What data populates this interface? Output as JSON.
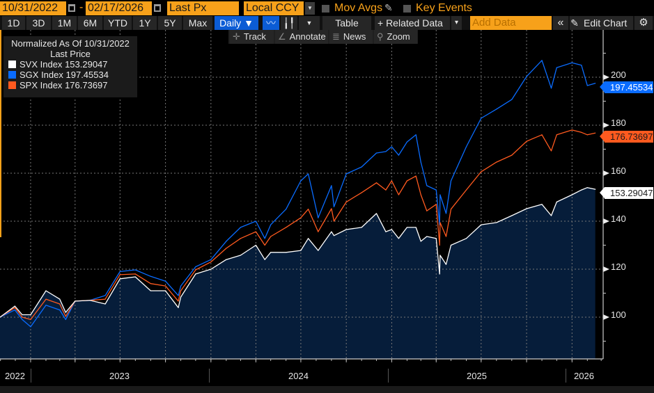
{
  "toolbar": {
    "start_date": "10/31/2022",
    "date_separator": "-",
    "end_date": "02/17/2026",
    "field": "Last Px",
    "currency": "Local CCY",
    "mov_avgs": "Mov Avgs",
    "key_events": "Key Events",
    "ranges": [
      "1D",
      "3D",
      "1M",
      "6M",
      "YTD",
      "1Y",
      "5Y",
      "Max"
    ],
    "frequency": "Daily ▼",
    "table": "Table",
    "related_data": "+ Related Data",
    "related_data_arrow": "▾",
    "add_data_placeholder": "Add Data",
    "collapse": "«",
    "edit_chart": "Edit Chart",
    "track": "Track",
    "annotate": "Annotate",
    "news": "News",
    "zoom": "Zoom"
  },
  "legend": {
    "title": "Normalized As Of 10/31/2022",
    "subtitle": "Last Price",
    "items": [
      {
        "name": "SVX Index",
        "value": "153.29047",
        "color": "#ffffff"
      },
      {
        "name": "SGX Index",
        "value": "197.45534",
        "color": "#0a6cff"
      },
      {
        "name": "SPX Index",
        "value": "176.73697",
        "color": "#ff5a1f"
      }
    ]
  },
  "chart_data": {
    "type": "line",
    "title": "Normalized As Of 10/31/2022",
    "xlabel": "",
    "ylabel": "",
    "ylim": [
      82.6,
      219.7
    ],
    "yticks": [
      100,
      120,
      140,
      160,
      180,
      200
    ],
    "xlim": [
      "2022-10-31",
      "2026-03-05"
    ],
    "x_tick_labels": [
      "2022",
      "2023",
      "2024",
      "2025",
      "2026"
    ],
    "grid": true,
    "legend_placement": "top-left",
    "area_fill_series": "SVX Index",
    "area_color": "#061d3a",
    "dates": [
      "2022-10-31",
      "2022-11-30",
      "2022-12-15",
      "2023-01-01",
      "2023-02-01",
      "2023-03-01",
      "2023-03-13",
      "2023-04-01",
      "2023-05-01",
      "2023-06-01",
      "2023-07-01",
      "2023-08-01",
      "2023-09-01",
      "2023-10-01",
      "2023-10-27",
      "2023-11-01",
      "2023-12-01",
      "2024-01-01",
      "2024-02-01",
      "2024-03-01",
      "2024-04-01",
      "2024-04-19",
      "2024-05-01",
      "2024-06-01",
      "2024-07-01",
      "2024-07-16",
      "2024-08-05",
      "2024-09-01",
      "2024-09-06",
      "2024-10-01",
      "2024-11-01",
      "2024-12-01",
      "2024-12-20",
      "2025-01-01",
      "2025-01-15",
      "2025-02-01",
      "2025-02-19",
      "2025-03-01",
      "2025-03-13",
      "2025-04-01",
      "2025-04-08",
      "2025-04-09",
      "2025-04-21",
      "2025-05-01",
      "2025-06-01",
      "2025-07-01",
      "2025-08-01",
      "2025-09-01",
      "2025-10-01",
      "2025-11-01",
      "2025-11-20",
      "2025-12-01",
      "2026-01-01",
      "2026-01-20",
      "2026-02-01",
      "2026-02-17"
    ],
    "series": [
      {
        "name": "SVX Index",
        "color": "#ffffff",
        "last": 153.29047,
        "values": [
          100,
          104.6,
          101,
          101,
          111,
          107.5,
          102,
          106.7,
          107,
          105.5,
          116,
          116.8,
          111,
          111,
          104,
          108.4,
          118,
          120,
          124,
          125.8,
          130,
          124,
          127,
          127,
          127.8,
          132.8,
          127.8,
          135.6,
          134,
          136.5,
          137.4,
          143.2,
          135.6,
          136.5,
          132.8,
          137.4,
          137.4,
          131.6,
          133.6,
          132.8,
          118,
          125.8,
          122,
          130,
          132.8,
          138.5,
          139.4,
          142.3,
          145.2,
          147,
          142.3,
          148,
          151,
          153,
          154,
          153.29047
        ]
      },
      {
        "name": "SGX Index",
        "color": "#0a6cff",
        "last": 197.45534,
        "values": [
          100,
          103,
          99,
          96,
          105,
          103,
          99,
          106.7,
          107,
          109,
          119,
          119.7,
          117,
          115,
          109,
          113,
          121,
          124,
          131.6,
          137.4,
          140,
          132.8,
          138.5,
          145,
          156.8,
          159.7,
          141.4,
          154.8,
          146,
          159.7,
          162.6,
          168.4,
          169,
          171,
          167.5,
          173,
          176,
          164.6,
          154.8,
          153,
          138.5,
          151,
          143.2,
          156.8,
          171,
          182.9,
          186.7,
          190.7,
          200.3,
          207,
          195.4,
          204,
          206,
          205,
          196.5,
          197.45534
        ]
      },
      {
        "name": "SPX Index",
        "color": "#ff5a1f",
        "last": 176.73697,
        "values": [
          100,
          104,
          100,
          99,
          107.5,
          105.5,
          100.3,
          106.7,
          107,
          107.5,
          117.7,
          118,
          114,
          113,
          106.7,
          111,
          119.7,
          123,
          128.7,
          132.8,
          135.6,
          130,
          133.6,
          137.4,
          141.4,
          145,
          135.6,
          145.2,
          140,
          148,
          151.9,
          156,
          153,
          156.8,
          151,
          156.8,
          158.8,
          151,
          144.3,
          147,
          130,
          139.4,
          133.6,
          145,
          153,
          160.6,
          164.6,
          167.5,
          173.3,
          176,
          169.3,
          176,
          178,
          177,
          176,
          176.73697
        ]
      }
    ]
  }
}
